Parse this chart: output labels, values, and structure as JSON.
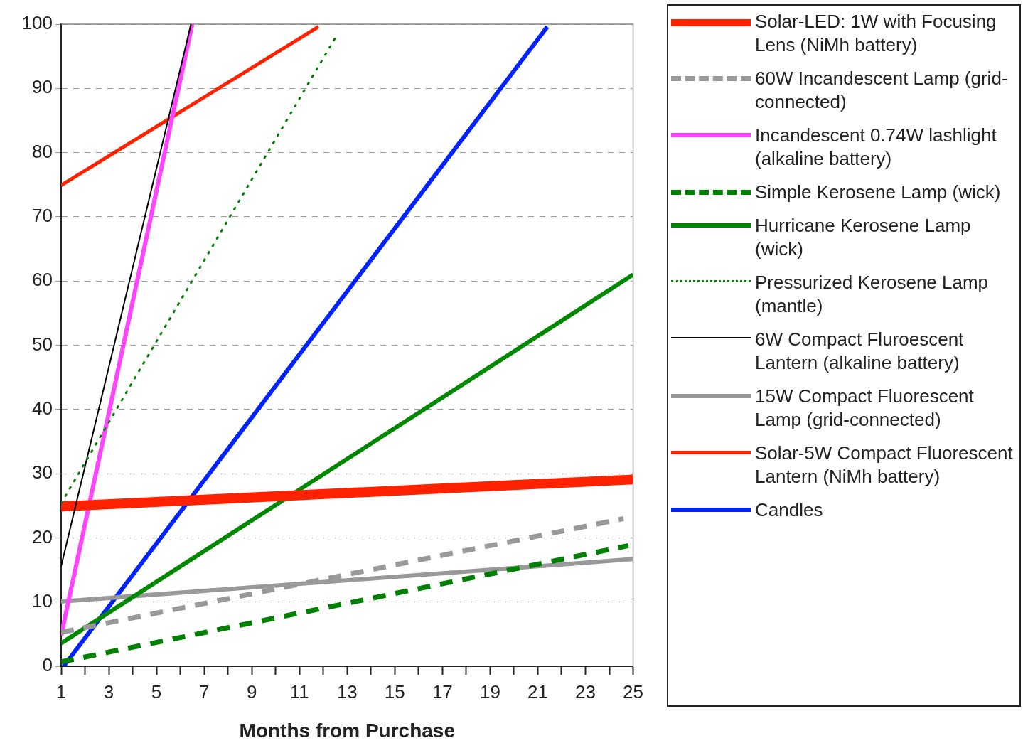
{
  "chart_data": {
    "type": "line",
    "xlabel": "Months from Purchase",
    "xlim": [
      1,
      25
    ],
    "ylim": [
      0,
      100
    ],
    "xticks": [
      1,
      {
        "value": 2,
        "label": null
      },
      3,
      {
        "value": 4,
        "label": null
      },
      5,
      {
        "value": 6,
        "label": null
      },
      7,
      {
        "value": 8,
        "label": null
      },
      9,
      {
        "value": 10,
        "label": null
      },
      11,
      {
        "value": 12,
        "label": null
      },
      13,
      {
        "value": 14,
        "label": null
      },
      15,
      {
        "value": 16,
        "label": null
      },
      17,
      {
        "value": 18,
        "label": null
      },
      19,
      {
        "value": 20,
        "label": null
      },
      21,
      {
        "value": 22,
        "label": null
      },
      23,
      {
        "value": 24,
        "label": null
      },
      25
    ],
    "yticks": [
      0,
      10,
      20,
      30,
      40,
      50,
      60,
      70,
      80,
      90,
      100
    ],
    "grid": "y",
    "legend": "right",
    "marker": "none",
    "series": [
      {
        "name": "Solar-LED: 1W with Focusing Lens (NiMh battery)",
        "color": "#ff2200",
        "x": [
          1,
          25
        ],
        "values": [
          24.9,
          29.1
        ],
        "line_style": "solid"
      },
      {
        "name": "60W Incandescent Lamp (grid-connected)",
        "color": "#999999",
        "x": [
          1,
          24.6
        ],
        "values": [
          5.3,
          23
        ],
        "line_style": "dashed"
      },
      {
        "name": "Incandescent 0.74W lashlight (alkaline battery)",
        "color": "#ff44ff",
        "x": [
          1,
          6.5
        ],
        "values": [
          4.8,
          100
        ],
        "line_style": "solid"
      },
      {
        "name": "Simple Kerosene Lamp (wick)",
        "color": "#008000",
        "x": [
          1,
          24.8
        ],
        "values": [
          0.7,
          18.8
        ],
        "line_style": "dashed"
      },
      {
        "name": "Hurricane Kerosene Lamp (wick)",
        "color": "#008800",
        "x": [
          1,
          25
        ],
        "values": [
          3.6,
          61
        ],
        "line_style": "solid"
      },
      {
        "name": "Pressurized Kerosene Lamp (mantle)",
        "color": "#008000",
        "x": [
          1,
          12.6
        ],
        "values": [
          25.4,
          98.5
        ],
        "line_style": "dotted"
      },
      {
        "name": "6W Compact Fluroescent Lantern (alkaline battery)",
        "color": "#000000",
        "x": [
          1,
          6.45
        ],
        "values": [
          15.6,
          100
        ],
        "line_style": "solid"
      },
      {
        "name": "15W Compact Fluorescent Lamp (grid-connected)",
        "color": "#999999",
        "x": [
          1,
          25
        ],
        "values": [
          10.1,
          16.7
        ],
        "line_style": "solid"
      },
      {
        "name": "Solar-5W Compact Fluorescent Lantern (NiMh battery)",
        "color": "#ff2200",
        "x": [
          1,
          11.8
        ],
        "values": [
          74.9,
          99.6
        ],
        "line_style": "solid"
      },
      {
        "name": "Candles",
        "color": "#0022ff",
        "x": [
          1.1,
          21.4
        ],
        "values": [
          0,
          99.6
        ],
        "line_style": "solid"
      }
    ]
  }
}
